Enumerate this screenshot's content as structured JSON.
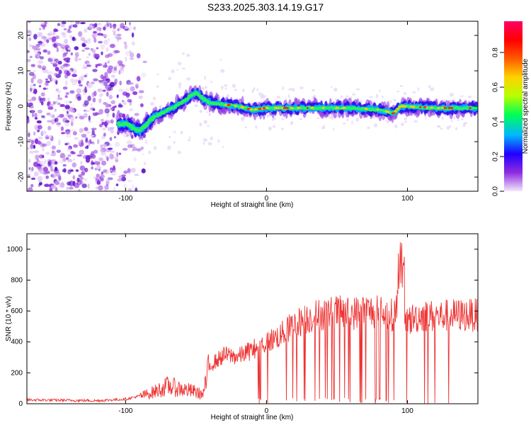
{
  "title": "S233.2025.303.14.19.G17",
  "chart_data": [
    {
      "type": "heatmap",
      "name": "spectrogram",
      "xlabel": "Height of straight line (km)",
      "ylabel": "Frequency (Hz)",
      "xlim": [
        -170,
        150
      ],
      "ylim": [
        -24,
        24
      ],
      "xticks": [
        -100,
        0,
        100
      ],
      "yticks": [
        -20,
        -10,
        0,
        10,
        20
      ],
      "ridge": {
        "x": [
          -100,
          -90,
          -80,
          -70,
          -60,
          -50,
          -45,
          -40,
          -30,
          -20,
          -10,
          0,
          20,
          40,
          60,
          80,
          85,
          90,
          95,
          100,
          120,
          150
        ],
        "freq": [
          -5,
          -7,
          -3,
          -1,
          1,
          4,
          2,
          1,
          0.5,
          0,
          -1,
          -0.5,
          -0.5,
          -0.5,
          -0.5,
          -1,
          -1.5,
          -2,
          0,
          0,
          -0.5,
          -0.5
        ]
      },
      "colorbar": {
        "label": "Normalized spectral amplitude",
        "ticks": [
          "0.0",
          "0.2",
          "0.4",
          "0.6",
          "0.8"
        ],
        "colors": [
          "#f3e8fb",
          "#8f2be0",
          "#1f00ff",
          "#00b7ff",
          "#00ff55",
          "#b6ff00",
          "#ffd200",
          "#ff5a00",
          "#ff0000",
          "#ff0066"
        ]
      }
    },
    {
      "type": "line",
      "name": "snr",
      "xlabel": "Height of straight line (km)",
      "ylabel": "SNR (10 * v/v)",
      "xlim": [
        -170,
        150
      ],
      "ylim": [
        0,
        1100
      ],
      "xticks": [
        -100,
        0,
        100
      ],
      "yticks": [
        0,
        200,
        400,
        600,
        800,
        1000
      ],
      "color": "#ee3333",
      "series": [
        {
          "name": "SNR envelope",
          "x": [
            -170,
            -120,
            -100,
            -90,
            -80,
            -70,
            -60,
            -50,
            -45,
            -40,
            -30,
            -20,
            -10,
            0,
            10,
            20,
            30,
            40,
            50,
            60,
            70,
            80,
            90,
            95,
            100,
            110,
            120,
            130,
            140,
            150
          ],
          "values": [
            25,
            20,
            30,
            50,
            80,
            120,
            100,
            80,
            60,
            270,
            340,
            330,
            380,
            430,
            480,
            560,
            600,
            630,
            640,
            630,
            650,
            640,
            620,
            750,
            580,
            620,
            610,
            620,
            620,
            620
          ]
        }
      ]
    }
  ]
}
